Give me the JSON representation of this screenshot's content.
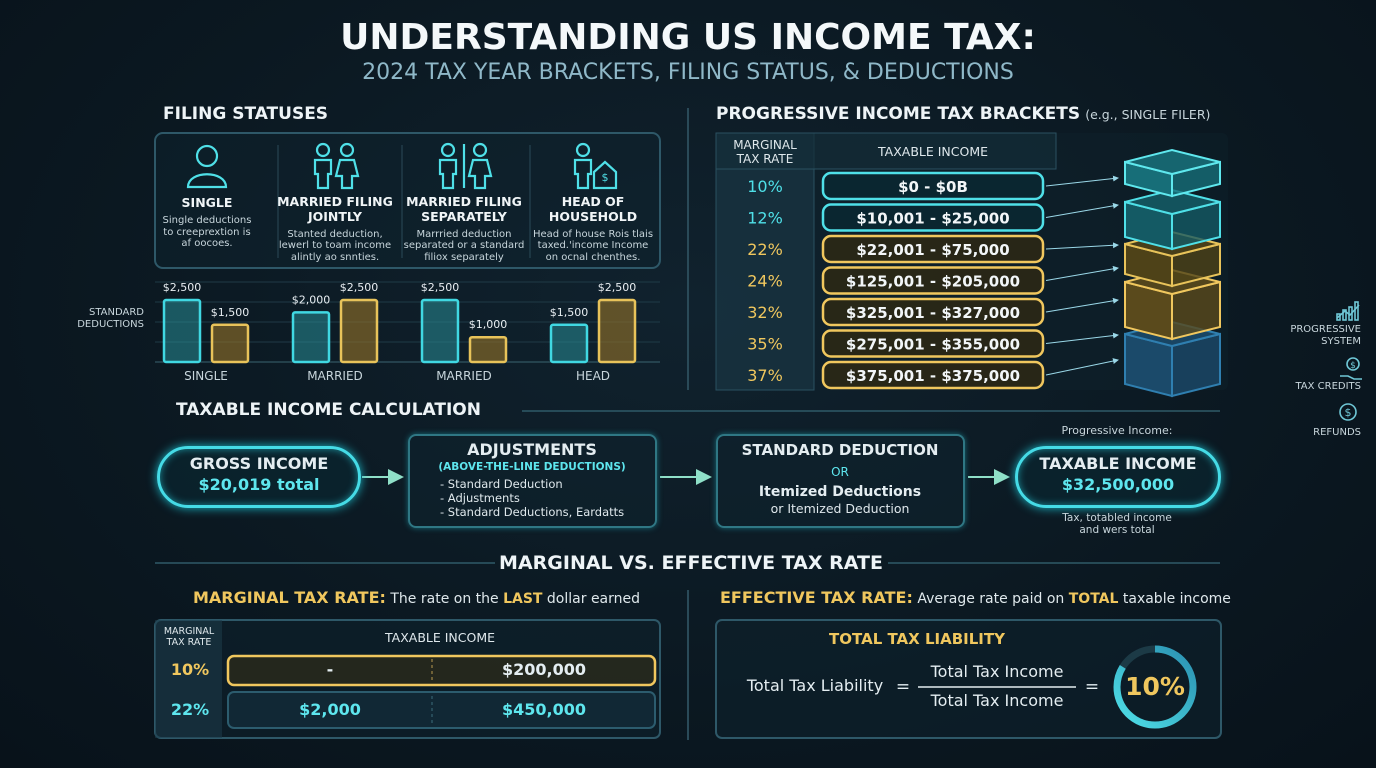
{
  "header": {
    "title": "UNDERSTANDING US INCOME TAX:",
    "subtitle": "2024 TAX YEAR BRACKETS, FILING STATUS, & DEDUCTIONS"
  },
  "filing_statuses": {
    "title": "FILING STATUSES",
    "items": [
      {
        "label": [
          "SINGLE"
        ],
        "description": [
          "Single deductions",
          "to creeprextion is",
          "af oocoes."
        ]
      },
      {
        "label": [
          "MARRIED FILING",
          "JOINTLY"
        ],
        "description": [
          "Stanted deduction,",
          "lewerl to toam income",
          "alintly ao snnties."
        ]
      },
      {
        "label": [
          "MARRIED FILING",
          "SEPARATELY"
        ],
        "description": [
          "Marrried deduction",
          "separated or a standard",
          "filiox separately"
        ]
      },
      {
        "label": [
          "HEAD OF",
          "HOUSEHOLD"
        ],
        "description": [
          "Head of house Rois tlais",
          "taxed.'income Income",
          "on ocnal chenthes."
        ]
      }
    ]
  },
  "standard_deductions": {
    "label": [
      "STANDARD",
      "DEDUCTIONS"
    ],
    "groups": [
      {
        "category": "SINGLE",
        "bars": [
          {
            "value": 2500,
            "label": "$2,500"
          },
          {
            "value": 1500,
            "label": "$1,500"
          }
        ]
      },
      {
        "category": "MARRIED",
        "bars": [
          {
            "value": 2000,
            "label": "$2,000"
          },
          {
            "value": 2500,
            "label": "$2,500"
          }
        ]
      },
      {
        "category": "MARRIED",
        "bars": [
          {
            "value": 2500,
            "label": "$2,500"
          },
          {
            "value": 1000,
            "label": "$1,000"
          }
        ]
      },
      {
        "category": "HEAD",
        "bars": [
          {
            "value": 1500,
            "label": "$1,500"
          },
          {
            "value": 2500,
            "label": "$2,500"
          }
        ]
      }
    ]
  },
  "brackets": {
    "title": "PROGRESSIVE INCOME TAX BRACKETS",
    "note": "(e.g., SINGLE FILER)",
    "columns": [
      [
        "MARGINAL",
        "TAX RATE"
      ],
      "TAXABLE INCOME"
    ],
    "rows": [
      [
        "10%",
        "$0 - $0B"
      ],
      [
        "12%",
        "$10,001 - $25,000"
      ],
      [
        "22%",
        "$22,001 - $75,000"
      ],
      [
        "24%",
        "$125,001 - $205,000"
      ],
      [
        "32%",
        "$325,001 - $327,000"
      ],
      [
        "35%",
        "$275,001 - $355,000"
      ],
      [
        "37%",
        "$375,001 - $375,000"
      ]
    ]
  },
  "side_links": [
    [
      "PROGRESSIVE",
      "SYSTEM"
    ],
    [
      "TAX CREDITS"
    ],
    [
      "REFUNDS"
    ]
  ],
  "calculation": {
    "title": "TAXABLE INCOME CALCULATION",
    "gross": {
      "title": "GROSS INCOME",
      "value": "$20,019 total"
    },
    "adjustments": {
      "title": "ADJUSTMENTS",
      "subtitle": "(ABOVE-THE-LINE DEDUCTIONS)",
      "items": [
        "- Standard Deduction",
        "- Adjustments",
        "- Standard Deductions, Eardatts"
      ]
    },
    "deduction": {
      "title": "STANDARD DEDUCTION",
      "or": "OR",
      "alt": "Itemized Deductions",
      "note": "or Itemized Deduction"
    },
    "taxable": {
      "note_above": "Progressive Income:",
      "title": "TAXABLE INCOME",
      "value": "$32,500,000",
      "note_below": [
        "Tax, totabled income",
        "and wers total"
      ]
    }
  },
  "rates": {
    "title": "MARGINAL VS. EFFECTIVE TAX RATE",
    "marginal": {
      "label": "MARGINAL TAX RATE:",
      "desc": [
        "The rate on the",
        "LAST",
        "dollar earned"
      ],
      "columns": [
        [
          "MARGINAL",
          "TAX RATE"
        ],
        "TAXABLE INCOME"
      ],
      "rows": [
        [
          "10%",
          "-",
          "$200,000"
        ],
        [
          "22%",
          "$2,000",
          "$450,000"
        ]
      ]
    },
    "effective": {
      "label": "EFFECTIVE TAX RATE:",
      "desc": [
        "Average rate paid on",
        "TOTAL",
        "taxable income"
      ],
      "box_title": "TOTAL TAX LIABILITY",
      "lhs": "Total Tax Liability",
      "equals": "=",
      "numerator": "Total Tax Income",
      "denominator": "Total Tax Income",
      "result": "10%"
    }
  }
}
